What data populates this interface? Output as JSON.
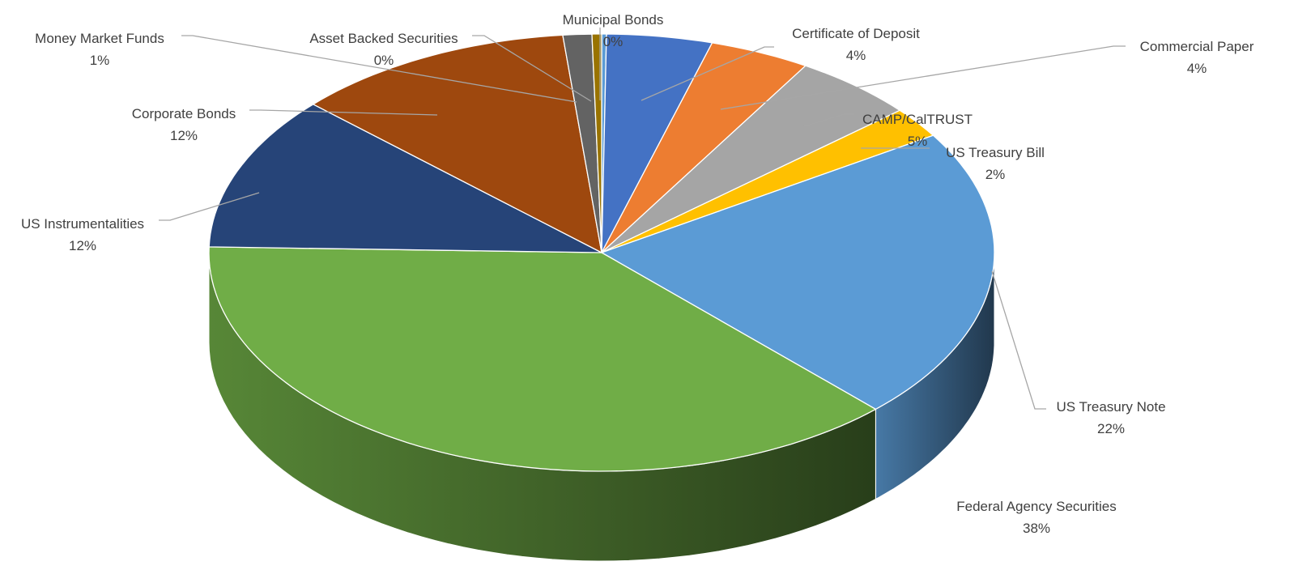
{
  "chart_data": {
    "type": "pie",
    "variant": "3d",
    "title": "",
    "start_angle_deg": 0,
    "direction": "clockwise",
    "slices": [
      {
        "label": "Municipal Bonds",
        "pct_label": "0%",
        "value": 0.2,
        "color": "#5b9bd5"
      },
      {
        "label": "Certificate of Deposit",
        "pct_label": "4%",
        "value": 4.4,
        "color": "#4472c4"
      },
      {
        "label": "Commercial Paper",
        "pct_label": "4%",
        "value": 4.2,
        "color": "#ed7d31"
      },
      {
        "label": "CAMP/CalTRUST",
        "pct_label": "5%",
        "value": 5.1,
        "color": "#a5a5a5"
      },
      {
        "label": "US Treasury Bill",
        "pct_label": "2%",
        "value": 2.3,
        "color": "#ffc000"
      },
      {
        "label": "US Treasury Note",
        "pct_label": "22%",
        "value": 22.0,
        "color": "#5b9bd5"
      },
      {
        "label": "Federal Agency Securities",
        "pct_label": "38%",
        "value": 38.2,
        "color": "#70ad47"
      },
      {
        "label": "US Instrumentalities",
        "pct_label": "12%",
        "value": 11.6,
        "color": "#264478"
      },
      {
        "label": "Corporate Bonds",
        "pct_label": "12%",
        "value": 11.7,
        "color": "#9e480e"
      },
      {
        "label": "Money Market Funds",
        "pct_label": "1%",
        "value": 1.2,
        "color": "#636363"
      },
      {
        "label": "Asset Backed Securities",
        "pct_label": "0%",
        "value": 0.4,
        "color": "#997300"
      }
    ]
  }
}
